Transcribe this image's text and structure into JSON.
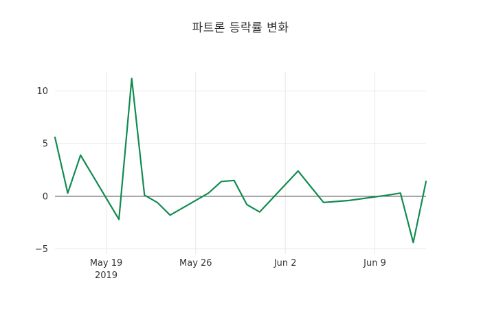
{
  "chart_data": {
    "type": "line",
    "title": "파트론 등락률 변화",
    "xlabel": "",
    "ylabel": "",
    "grid": true,
    "legend_position": "none",
    "x_domain": [
      "2019-05-15",
      "2019-06-13"
    ],
    "ylim": [
      -5.5,
      11.8
    ],
    "series": [
      {
        "name": "등락률",
        "dates": [
          "2019-05-15",
          "2019-05-16",
          "2019-05-17",
          "2019-05-20",
          "2019-05-21",
          "2019-05-22",
          "2019-05-23",
          "2019-05-24",
          "2019-05-27",
          "2019-05-28",
          "2019-05-29",
          "2019-05-30",
          "2019-05-31",
          "2019-06-03",
          "2019-06-04",
          "2019-06-05",
          "2019-06-07",
          "2019-06-10",
          "2019-06-11",
          "2019-06-12",
          "2019-06-13"
        ],
        "values": [
          5.6,
          0.3,
          3.9,
          -2.2,
          11.2,
          0.1,
          -0.6,
          -1.8,
          0.3,
          1.4,
          1.5,
          -0.8,
          -1.5,
          2.4,
          0.9,
          -0.6,
          -0.4,
          0.1,
          0.3,
          -4.4,
          1.4
        ]
      }
    ],
    "yticks": [
      {
        "value": -5,
        "label": "−5"
      },
      {
        "value": 0,
        "label": "0"
      },
      {
        "value": 5,
        "label": "5"
      },
      {
        "value": 10,
        "label": "10"
      }
    ],
    "xticks": [
      {
        "date": "2019-05-19",
        "label": "May 19",
        "sublabel": "2019"
      },
      {
        "date": "2019-05-26",
        "label": "May 26"
      },
      {
        "date": "2019-06-02",
        "label": "Jun 2"
      },
      {
        "date": "2019-06-09",
        "label": "Jun 9"
      }
    ],
    "colors": {
      "line": "#118b50",
      "grid": "#e7e7e7",
      "zero_line": "#555555",
      "text": "#333333",
      "background": "#ffffff"
    }
  }
}
